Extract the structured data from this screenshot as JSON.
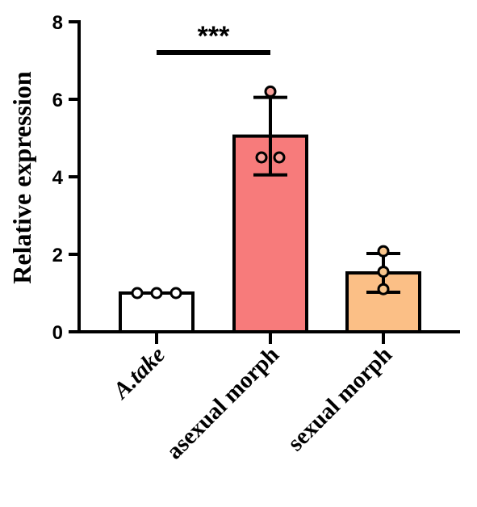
{
  "chart_data": {
    "type": "bar",
    "title": "",
    "xlabel": "",
    "ylabel": "Relative expression",
    "ylim": [
      0,
      8
    ],
    "yticks": [
      0,
      2,
      4,
      6,
      8
    ],
    "grid": false,
    "legend": "none",
    "categories": [
      "A.take",
      "asexual morph",
      "sexual morph"
    ],
    "category_italic": [
      true,
      false,
      false
    ],
    "values": [
      1.0,
      5.05,
      1.52
    ],
    "errors": [
      0.0,
      1.0,
      0.5
    ],
    "points": [
      [
        1.0,
        1.0,
        1.0
      ],
      [
        6.2,
        4.5,
        4.5
      ],
      [
        2.08,
        1.55,
        1.1
      ]
    ],
    "bar_colors": [
      "#ffffff",
      "#f77b7b",
      "#fbbf86"
    ],
    "point_colors": [
      "#ffffff",
      "#f9a09a",
      "#f9c58b"
    ],
    "annotations": [
      {
        "label": "***",
        "from": "A.take",
        "to": "asexual morph"
      }
    ]
  }
}
